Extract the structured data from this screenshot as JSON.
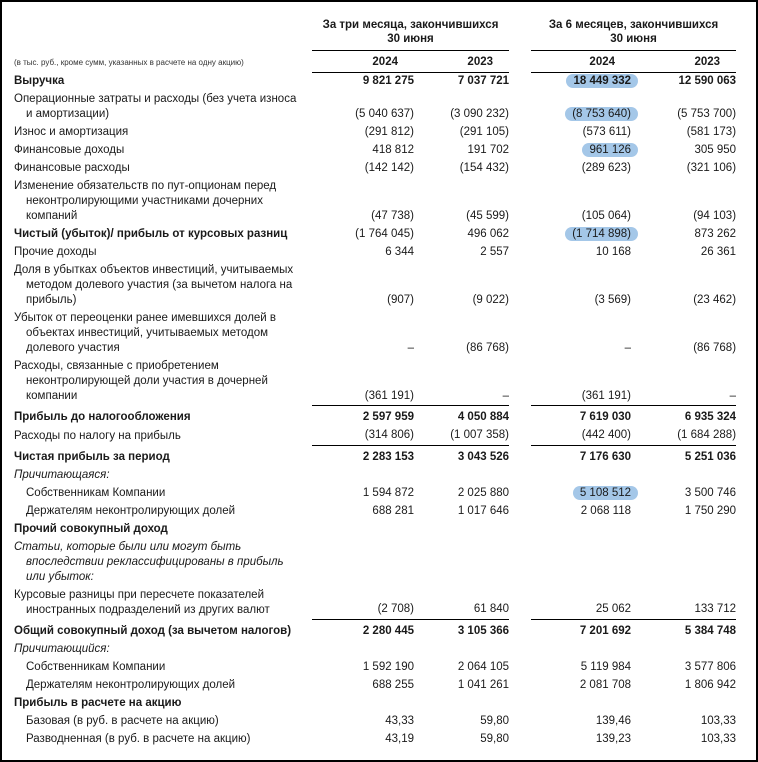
{
  "note": "(в тыс. руб., кроме сумм, указанных в расчете на одну акцию)",
  "header": {
    "group_3m": "За три месяца, закончившихся\n30 июня",
    "group_6m": "За 6 месяцев, закончившихся\n30 июня",
    "years": [
      "2024",
      "2023",
      "2024",
      "2023"
    ]
  },
  "highlight_color": "#a4c7e8",
  "rows": [
    {
      "label": "Выручка",
      "bold": true,
      "bold_values": true,
      "highlight": 2,
      "values": [
        "9 821 275",
        "7 037 721",
        "18 449 332",
        "12 590 063"
      ]
    },
    {
      "label": "Операционные затраты и расходы (без учета износа и амортизации)",
      "highlight": 2,
      "values": [
        "(5 040 637)",
        "(3 090 232)",
        "(8 753 640)",
        "(5 753 700)"
      ]
    },
    {
      "label": "Износ и амортизация",
      "values": [
        "(291 812)",
        "(291 105)",
        "(573 611)",
        "(581 173)"
      ]
    },
    {
      "label": "Финансовые доходы",
      "highlight": 2,
      "values": [
        "418 812",
        "191 702",
        "961 126",
        "305 950"
      ]
    },
    {
      "label": "Финансовые расходы",
      "values": [
        "(142 142)",
        "(154 432)",
        "(289 623)",
        "(321 106)"
      ]
    },
    {
      "label": "Изменение обязательств по пут-опционам перед неконтролирующими участниками дочерних компаний",
      "values": [
        "(47 738)",
        "(45 599)",
        "(105 064)",
        "(94 103)"
      ]
    },
    {
      "label": "Чистый (убыток)/ прибыль от курсовых разниц",
      "bold": true,
      "highlight": 2,
      "values": [
        "(1 764 045)",
        "496 062",
        "(1 714 898)",
        "873 262"
      ]
    },
    {
      "label": "Прочие доходы",
      "values": [
        "6 344",
        "2 557",
        "10 168",
        "26 361"
      ]
    },
    {
      "label": "Доля в убытках объектов инвестиций, учитываемых методом долевого участия (за вычетом налога на прибыль)",
      "values": [
        "(907)",
        "(9 022)",
        "(3 569)",
        "(23 462)"
      ]
    },
    {
      "label": "Убыток от переоценки ранее имевшихся долей в объектах инвестиций, учитываемых методом долевого участия",
      "values": [
        "–",
        "(86 768)",
        "–",
        "(86 768)"
      ]
    },
    {
      "label": "Расходы, связанные с приобретением неконтролирующей доли участия в дочерней компании",
      "values": [
        "(361 191)",
        "–",
        "(361 191)",
        "–"
      ]
    },
    {
      "label": "Прибыль до налогообложения",
      "bold": true,
      "bold_values": true,
      "topline": true,
      "values": [
        "2 597 959",
        "4 050 884",
        "7 619 030",
        "6 935 324"
      ]
    },
    {
      "label": "Расходы по налогу на прибыль",
      "values": [
        "(314 806)",
        "(1 007 358)",
        "(442 400)",
        "(1 684 288)"
      ]
    },
    {
      "label": "Чистая прибыль за период",
      "bold": true,
      "bold_values": true,
      "topline": true,
      "values": [
        "2 283 153",
        "3 043 526",
        "7 176 630",
        "5 251 036"
      ]
    },
    {
      "label": "Причитающаяся:",
      "italic": true,
      "values": null
    },
    {
      "label": "Собственникам Компании",
      "indent": true,
      "highlight": 2,
      "values": [
        "1 594 872",
        "2 025 880",
        "5 108 512",
        "3 500 746"
      ]
    },
    {
      "label": "Держателям неконтролирующих долей",
      "indent": true,
      "values": [
        "688 281",
        "1 017 646",
        "2 068 118",
        "1 750 290"
      ]
    },
    {
      "label": "Прочий совокупный доход",
      "bold": true,
      "values": null
    },
    {
      "label": "Статьи, которые были или могут быть впоследствии реклассифицированы в прибыль или убыток:",
      "italic": true,
      "values": null
    },
    {
      "label": "Курсовые разницы при пересчете показателей иностранных подразделений из других валют",
      "values": [
        "(2 708)",
        "61 840",
        "25 062",
        "133 712"
      ]
    },
    {
      "label": "Общий совокупный доход (за вычетом налогов)",
      "bold": true,
      "bold_values": true,
      "topline": true,
      "values": [
        "2 280 445",
        "3 105 366",
        "7 201 692",
        "5 384 748"
      ]
    },
    {
      "label": "Причитающийся:",
      "italic": true,
      "values": null
    },
    {
      "label": "Собственникам Компании",
      "indent": true,
      "values": [
        "1 592 190",
        "2 064 105",
        "5 119 984",
        "3 577 806"
      ]
    },
    {
      "label": "Держателям неконтролирующих долей",
      "indent": true,
      "values": [
        "688 255",
        "1 041 261",
        "2 081 708",
        "1 806 942"
      ]
    },
    {
      "label": "Прибыль в расчете на акцию",
      "bold": true,
      "values": null
    },
    {
      "label": "Базовая (в руб. в расчете на акцию)",
      "indent": true,
      "values": [
        "43,33",
        "59,80",
        "139,46",
        "103,33"
      ]
    },
    {
      "label": "Разводненная (в руб. в расчете на акцию)",
      "indent": true,
      "values": [
        "43,19",
        "59,80",
        "139,23",
        "103,33"
      ]
    }
  ]
}
